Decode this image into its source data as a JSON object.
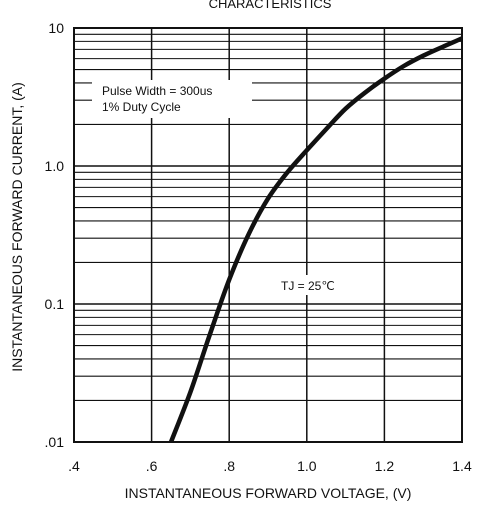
{
  "chart_data": {
    "type": "line",
    "title": "CHARACTERISTICS",
    "xlabel": "INSTANTANEOUS FORWARD VOLTAGE, (V)",
    "ylabel": "INSTANTANEOUS FORWARD CURRENT, (A)",
    "x_ticks": [
      ".4",
      ".6",
      ".8",
      "1.0",
      "1.2",
      "1.4"
    ],
    "y_ticks": [
      ".01",
      "0.1",
      "1.0",
      "10"
    ],
    "xlim": [
      0.4,
      1.4
    ],
    "ylim": [
      0.01,
      10
    ],
    "y_scale": "log",
    "grid": true,
    "annotations": [
      "Pulse Width = 300us",
      "1% Duty Cycle",
      "TJ = 25℃"
    ],
    "x": [
      0.65,
      0.7,
      0.75,
      0.8,
      0.85,
      0.9,
      0.95,
      1.0,
      1.05,
      1.1,
      1.15,
      1.2,
      1.25,
      1.3,
      1.35,
      1.4
    ],
    "values": [
      0.01,
      0.023,
      0.06,
      0.15,
      0.32,
      0.58,
      0.9,
      1.3,
      1.85,
      2.6,
      3.4,
      4.3,
      5.3,
      6.3,
      7.3,
      8.4
    ]
  }
}
